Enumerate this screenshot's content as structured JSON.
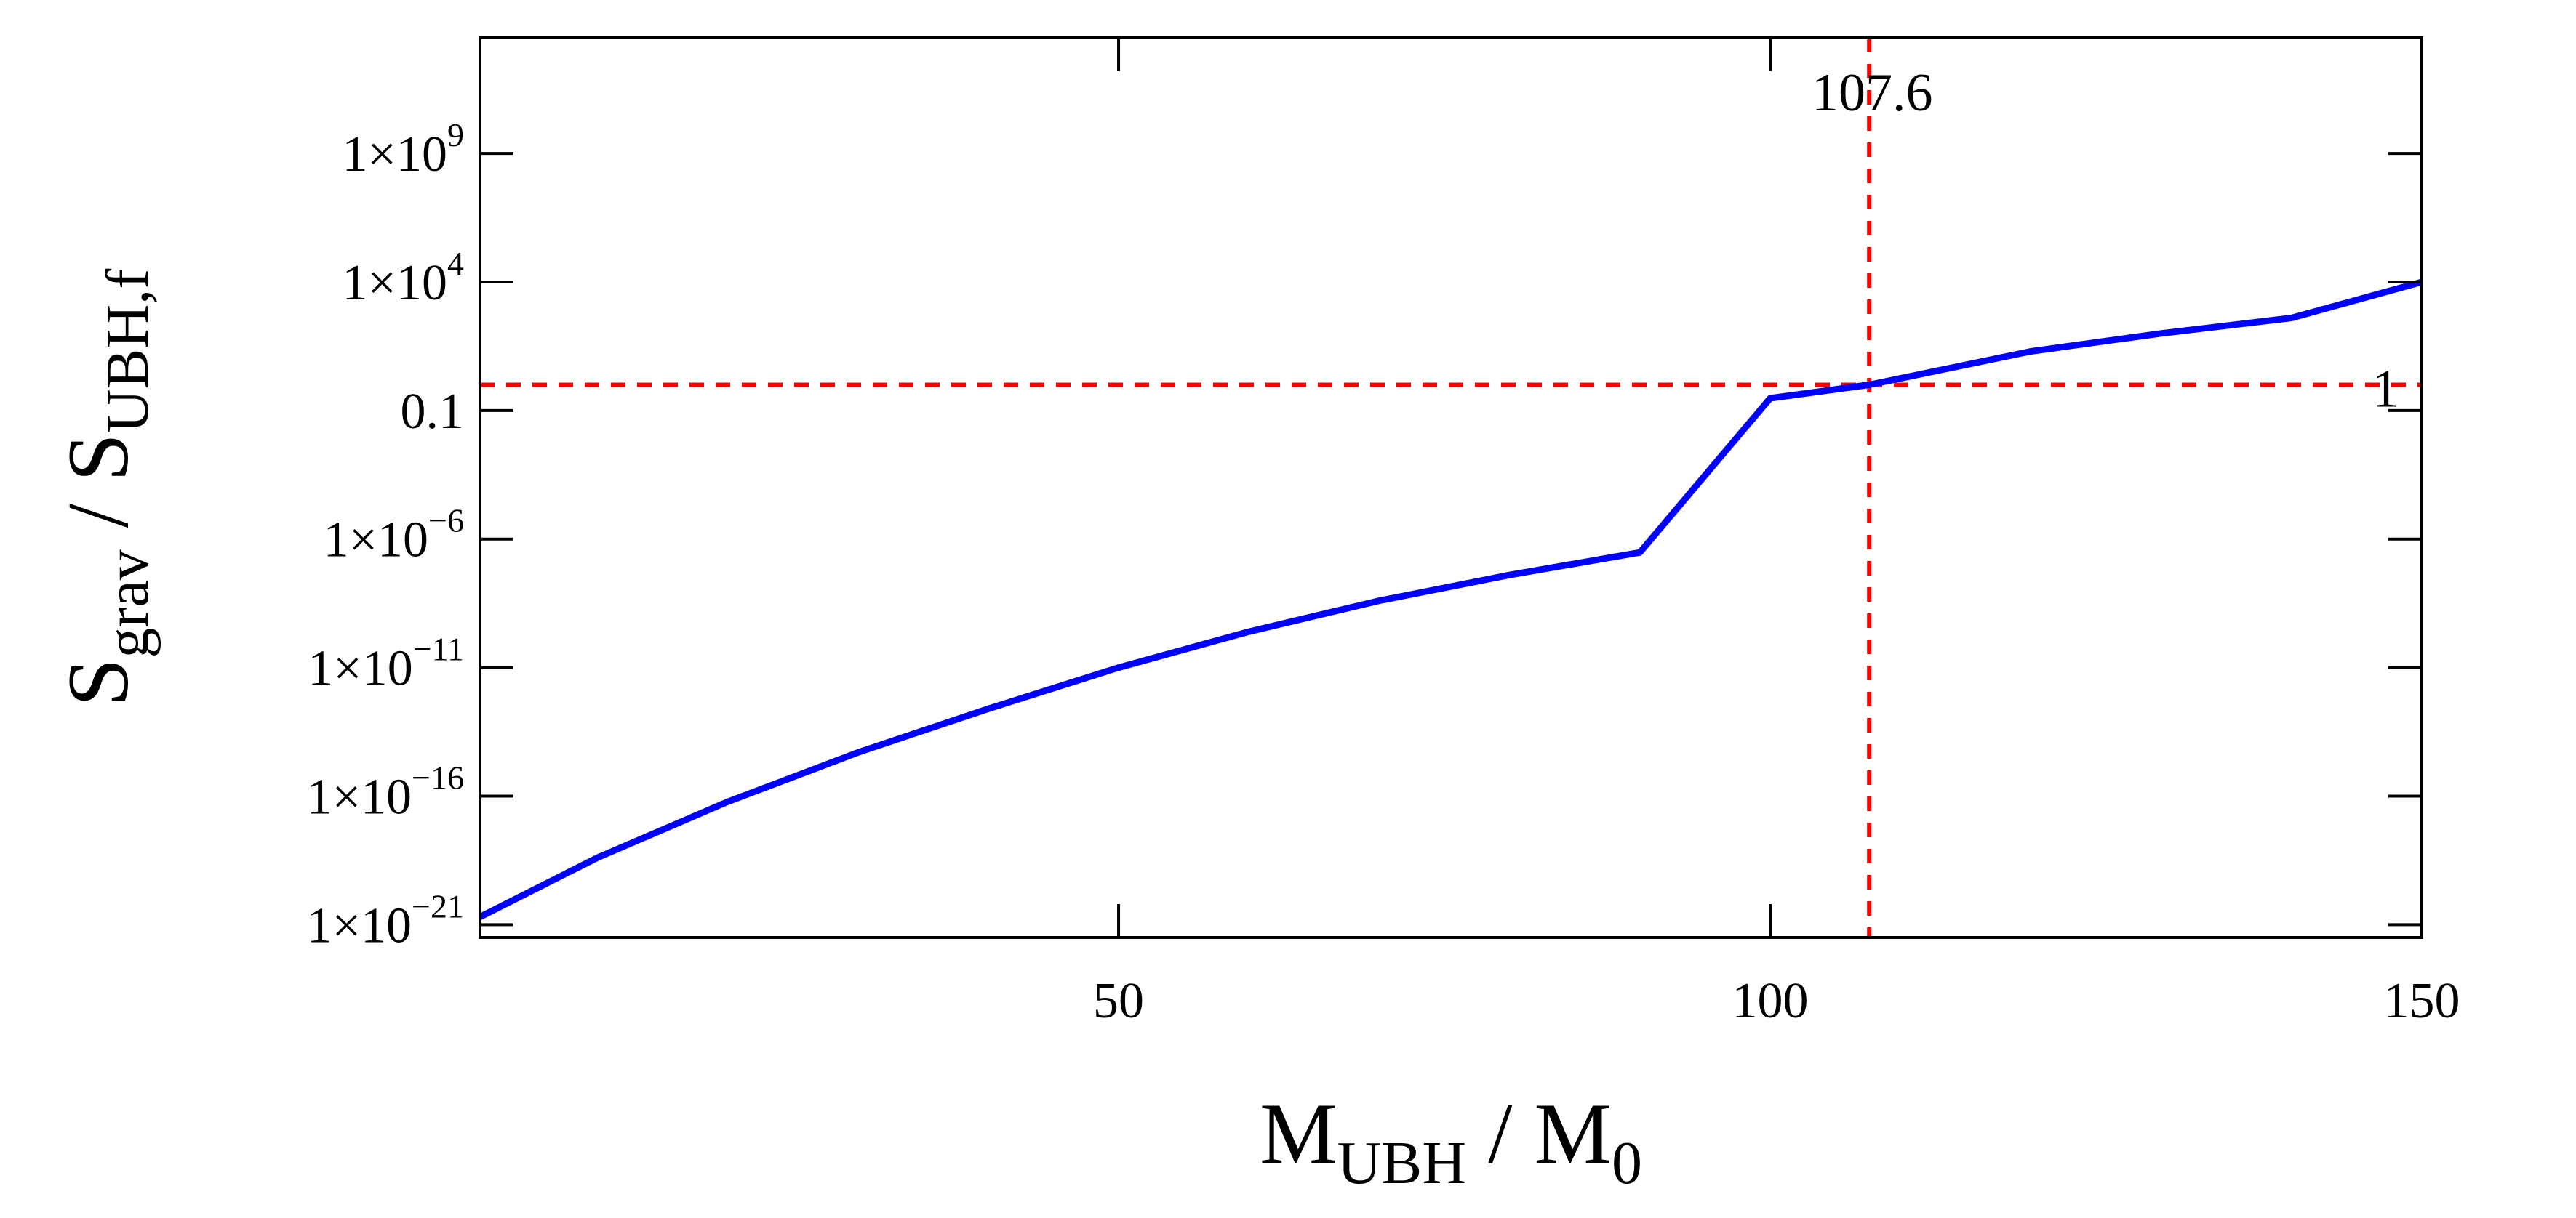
{
  "chart_data": {
    "type": "line",
    "title": "",
    "xlabel": {
      "main": "M",
      "sub": "UBH",
      "sep": " / M",
      "sub2": "0"
    },
    "ylabel": {
      "main": "S",
      "sub": "grav",
      "sep": " / S",
      "sub2": "UBH,f"
    },
    "x_scale": "linear",
    "y_scale": "log",
    "xlim": [
      1,
      150
    ],
    "ylim_log10": [
      -21.5,
      13.5
    ],
    "x_ticks": [
      {
        "value": 50,
        "label": "50"
      },
      {
        "value": 100,
        "label": "100"
      },
      {
        "value": 150,
        "label": "150"
      }
    ],
    "y_ticks": [
      {
        "log10": 9,
        "mant": "1×10",
        "exp": "9"
      },
      {
        "log10": 4,
        "mant": "1×10",
        "exp": "4"
      },
      {
        "log10": -1,
        "mant": "0.1",
        "exp": ""
      },
      {
        "log10": -6,
        "mant": "1×10",
        "exp": "−6"
      },
      {
        "log10": -11,
        "mant": "1×10",
        "exp": "−11"
      },
      {
        "log10": -16,
        "mant": "1×10",
        "exp": "−16"
      },
      {
        "log10": -21,
        "mant": "1×10",
        "exp": "−21"
      }
    ],
    "series": [
      {
        "color": "#0000ff",
        "x": [
          1,
          10,
          20,
          30,
          40,
          50,
          60,
          70,
          80,
          90,
          100,
          107.6,
          120,
          130,
          140,
          150
        ],
        "y": [
          2e-21,
          4e-19,
          6e-17,
          5e-15,
          2.5e-13,
          1e-11,
          2.5e-10,
          4e-09,
          4e-08,
          3e-07,
          0.3,
          1,
          20.0,
          100.0,
          400.0,
          10000.0
        ]
      }
    ],
    "reference_lines": [
      {
        "orientation": "vertical",
        "value": 107.6,
        "label": "107.6",
        "color": "#ff0000",
        "style": "dashed"
      },
      {
        "orientation": "horizontal",
        "value": 1,
        "label": "1",
        "color": "#ff0000",
        "style": "dashed"
      }
    ],
    "grid": false,
    "legend": "none"
  }
}
